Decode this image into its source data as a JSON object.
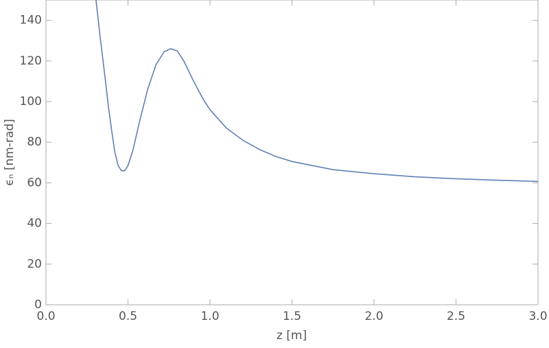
{
  "chart_data": {
    "type": "line",
    "x_label": "z [m]",
    "y_label": "ϵₙ [nm-rad]",
    "x": [
      0.305,
      0.33,
      0.36,
      0.38,
      0.4,
      0.42,
      0.44,
      0.46,
      0.48,
      0.5,
      0.53,
      0.57,
      0.62,
      0.67,
      0.72,
      0.76,
      0.8,
      0.84,
      0.9,
      0.96,
      1.0,
      1.1,
      1.2,
      1.3,
      1.4,
      1.5,
      1.75,
      2.0,
      2.25,
      2.5,
      2.75,
      3.0
    ],
    "series": [
      {
        "color": "#5e81b5",
        "values": [
          150,
          132,
          112,
          98,
          86,
          75,
          68.5,
          66,
          66,
          68.5,
          76,
          90,
          106,
          118,
          124.5,
          126,
          125,
          120,
          110,
          101,
          96,
          87,
          81,
          76.5,
          73,
          70.5,
          66.5,
          64.5,
          63,
          62,
          61.3,
          60.7
        ]
      }
    ],
    "xlim": [
      0,
      3
    ],
    "ylim": [
      0,
      150
    ],
    "xticks": [
      {
        "value": 0,
        "label": "0.0"
      },
      0.5,
      {
        "value": 1,
        "label": "1.0"
      },
      1.5,
      {
        "value": 2,
        "label": "2.0"
      },
      2.5,
      {
        "value": 3,
        "label": "3.0"
      }
    ],
    "yticks": [
      0,
      20,
      40,
      60,
      80,
      100,
      120,
      140
    ]
  }
}
